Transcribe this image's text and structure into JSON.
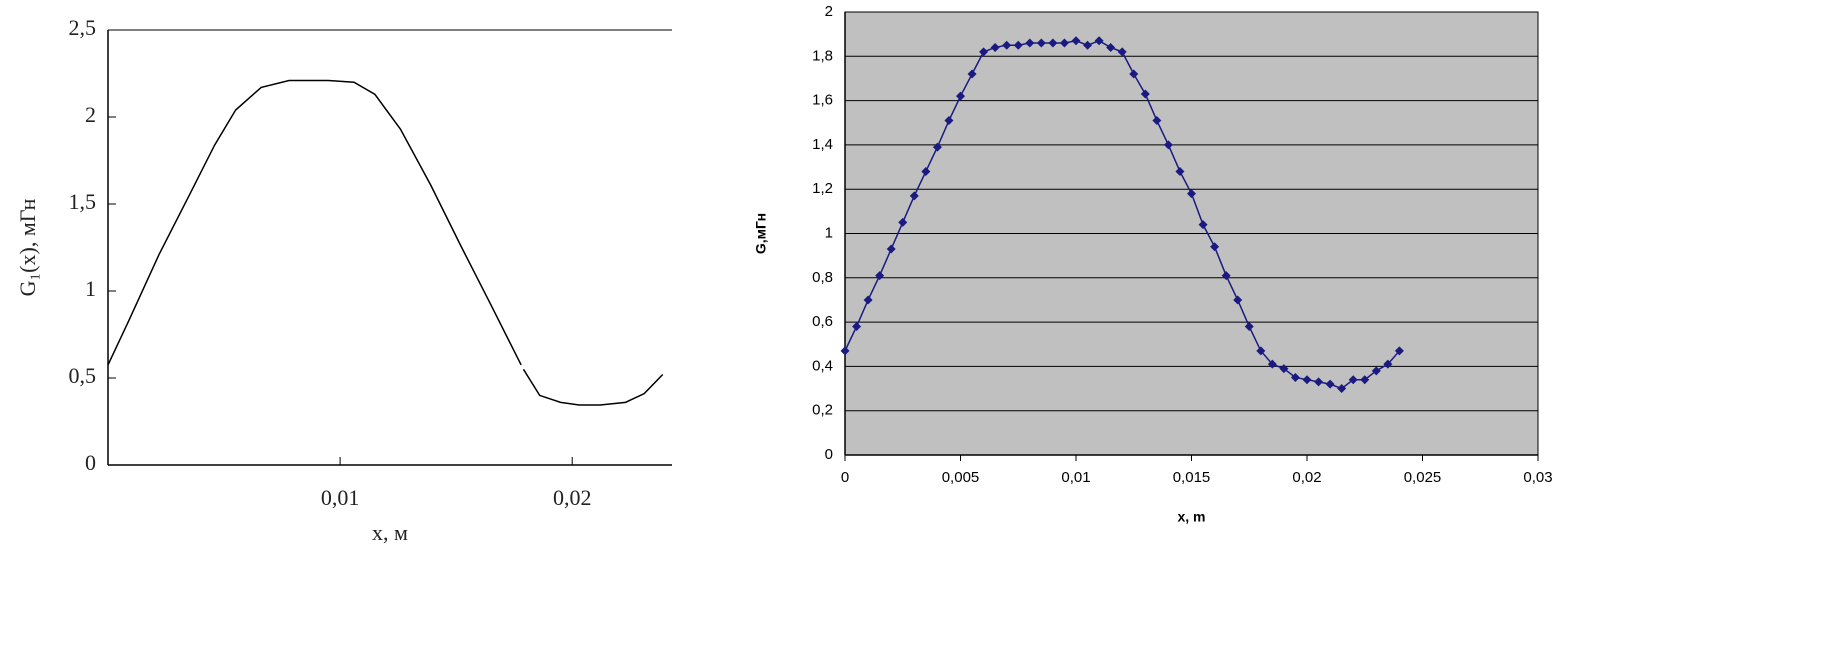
{
  "chart_data": [
    {
      "type": "line",
      "ylabel": "G₁(x), мГн",
      "xlabel": "x, м",
      "xlim": [
        0,
        0.0243
      ],
      "ylim": [
        0,
        2.5
      ],
      "xticks": [
        {
          "value": 0.01,
          "label": "0,01"
        },
        {
          "value": 0.02,
          "label": "0,02"
        }
      ],
      "yticks": [
        0,
        {
          "value": 0.5,
          "label": "0,5"
        },
        1,
        {
          "value": 1.5,
          "label": "1,5"
        },
        2,
        {
          "value": 2.5,
          "label": "2,5"
        }
      ],
      "grid": false,
      "markers": false,
      "series": [
        {
          "color": "#000000",
          "x": [
            0,
            0.00095,
            0.0022,
            0.0035,
            0.0046,
            0.0055,
            0.0066,
            0.0078,
            0.0095,
            0.0106,
            0.0115,
            0.0126,
            0.0139,
            0.0152,
            0.0165,
            0.0178,
            0.01785,
            0.0179,
            0.0186,
            0.0195,
            0.0203,
            0.0212,
            0.0223,
            0.0231,
            0.0239
          ],
          "values": [
            0.575,
            0.845,
            1.21,
            1.55,
            1.84,
            2.04,
            2.17,
            2.21,
            2.21,
            2.2,
            2.13,
            1.93,
            1.61,
            1.26,
            0.92,
            0.575,
            null,
            0.55,
            0.4,
            0.36,
            0.345,
            0.345,
            0.36,
            0.41,
            0.52
          ]
        }
      ]
    },
    {
      "type": "line",
      "ylabel": "G,мГн",
      "xlabel": "x, m",
      "xlim": [
        0,
        0.03
      ],
      "ylim": [
        0,
        2
      ],
      "xticks": [
        0,
        {
          "value": 0.005,
          "label": "0,005"
        },
        {
          "value": 0.01,
          "label": "0,01"
        },
        {
          "value": 0.015,
          "label": "0,015"
        },
        {
          "value": 0.02,
          "label": "0,02"
        },
        {
          "value": 0.025,
          "label": "0,025"
        },
        {
          "value": 0.03,
          "label": "0,03"
        }
      ],
      "yticks": [
        0,
        {
          "value": 0.2,
          "label": "0,2"
        },
        {
          "value": 0.4,
          "label": "0,4"
        },
        {
          "value": 0.6,
          "label": "0,6"
        },
        {
          "value": 0.8,
          "label": "0,8"
        },
        1,
        {
          "value": 1.2,
          "label": "1,2"
        },
        {
          "value": 1.4,
          "label": "1,4"
        },
        {
          "value": 1.6,
          "label": "1,6"
        },
        {
          "value": 1.8,
          "label": "1,8"
        },
        2
      ],
      "grid": true,
      "markers": true,
      "plot_background": "#c0c0c0",
      "series": [
        {
          "color": "#1a1a80",
          "x": [
            0,
            0.0005,
            0.001,
            0.0015,
            0.002,
            0.0025,
            0.003,
            0.0035,
            0.004,
            0.0045,
            0.005,
            0.0055,
            0.006,
            0.0065,
            0.007,
            0.0075,
            0.008,
            0.0085,
            0.009,
            0.0095,
            0.01,
            0.0105,
            0.011,
            0.0115,
            0.012,
            0.0125,
            0.013,
            0.0135,
            0.014,
            0.0145,
            0.015,
            0.0155,
            0.016,
            0.0165,
            0.017,
            0.0175,
            0.018,
            0.0185,
            0.019,
            0.0195,
            0.02,
            0.0205,
            0.021,
            0.0215,
            0.022,
            0.0225,
            0.023,
            0.0235,
            0.024
          ],
          "values": [
            0.47,
            0.58,
            0.7,
            0.81,
            0.93,
            1.05,
            1.17,
            1.28,
            1.39,
            1.51,
            1.62,
            1.72,
            1.82,
            1.84,
            1.85,
            1.85,
            1.86,
            1.86,
            1.86,
            1.86,
            1.87,
            1.85,
            1.87,
            1.84,
            1.82,
            1.72,
            1.63,
            1.51,
            1.4,
            1.28,
            1.18,
            1.04,
            0.94,
            0.81,
            0.7,
            0.58,
            0.47,
            0.41,
            0.39,
            0.35,
            0.34,
            0.33,
            0.32,
            0.3,
            0.34,
            0.34,
            0.38,
            0.41,
            0.47
          ]
        }
      ]
    }
  ]
}
